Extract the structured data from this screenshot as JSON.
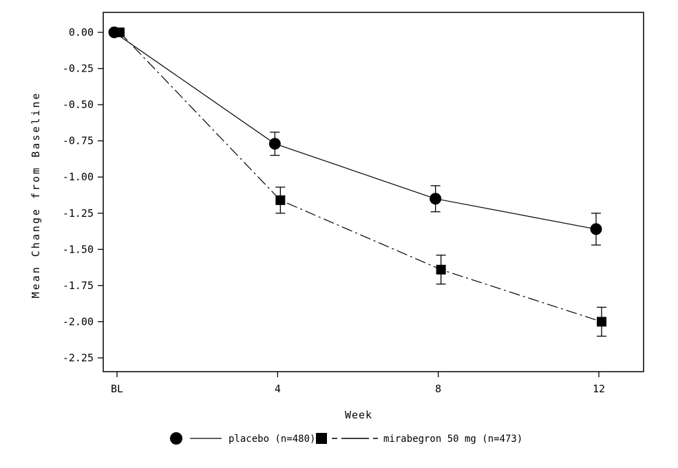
{
  "chart_data": {
    "type": "line",
    "title": "",
    "xlabel": "Week",
    "ylabel": "Mean Change from Baseline",
    "x": [
      0,
      4,
      8,
      12
    ],
    "x_tick_labels": [
      "BL",
      "4",
      "8",
      "12"
    ],
    "ylim": [
      -2.25,
      0.0
    ],
    "ytick_values": [
      0.0,
      -0.25,
      -0.5,
      -0.75,
      -1.0,
      -1.25,
      -1.5,
      -1.75,
      -2.0,
      -2.25
    ],
    "ytick_labels": [
      "0.00",
      "-0.25",
      "-0.50",
      "-0.75",
      "-1.00",
      "-1.25",
      "-1.50",
      "-1.75",
      "-2.00",
      "-2.25"
    ],
    "grid": false,
    "frame": true,
    "legend_position": "bottom",
    "colors": {
      "foreground": "#000000",
      "background": "#ffffff"
    },
    "series": [
      {
        "name": "placebo (n=480)",
        "marker": "circle",
        "line": "solid",
        "values": [
          0.0,
          -0.77,
          -1.15,
          -1.36
        ],
        "errors": [
          0.0,
          0.08,
          0.09,
          0.11
        ]
      },
      {
        "name": "mirabegron 50 mg (n=473)",
        "marker": "square",
        "line": "dash-dot",
        "values": [
          0.0,
          -1.16,
          -1.64,
          -2.0
        ],
        "errors": [
          0.0,
          0.09,
          0.1,
          0.1
        ]
      }
    ]
  }
}
